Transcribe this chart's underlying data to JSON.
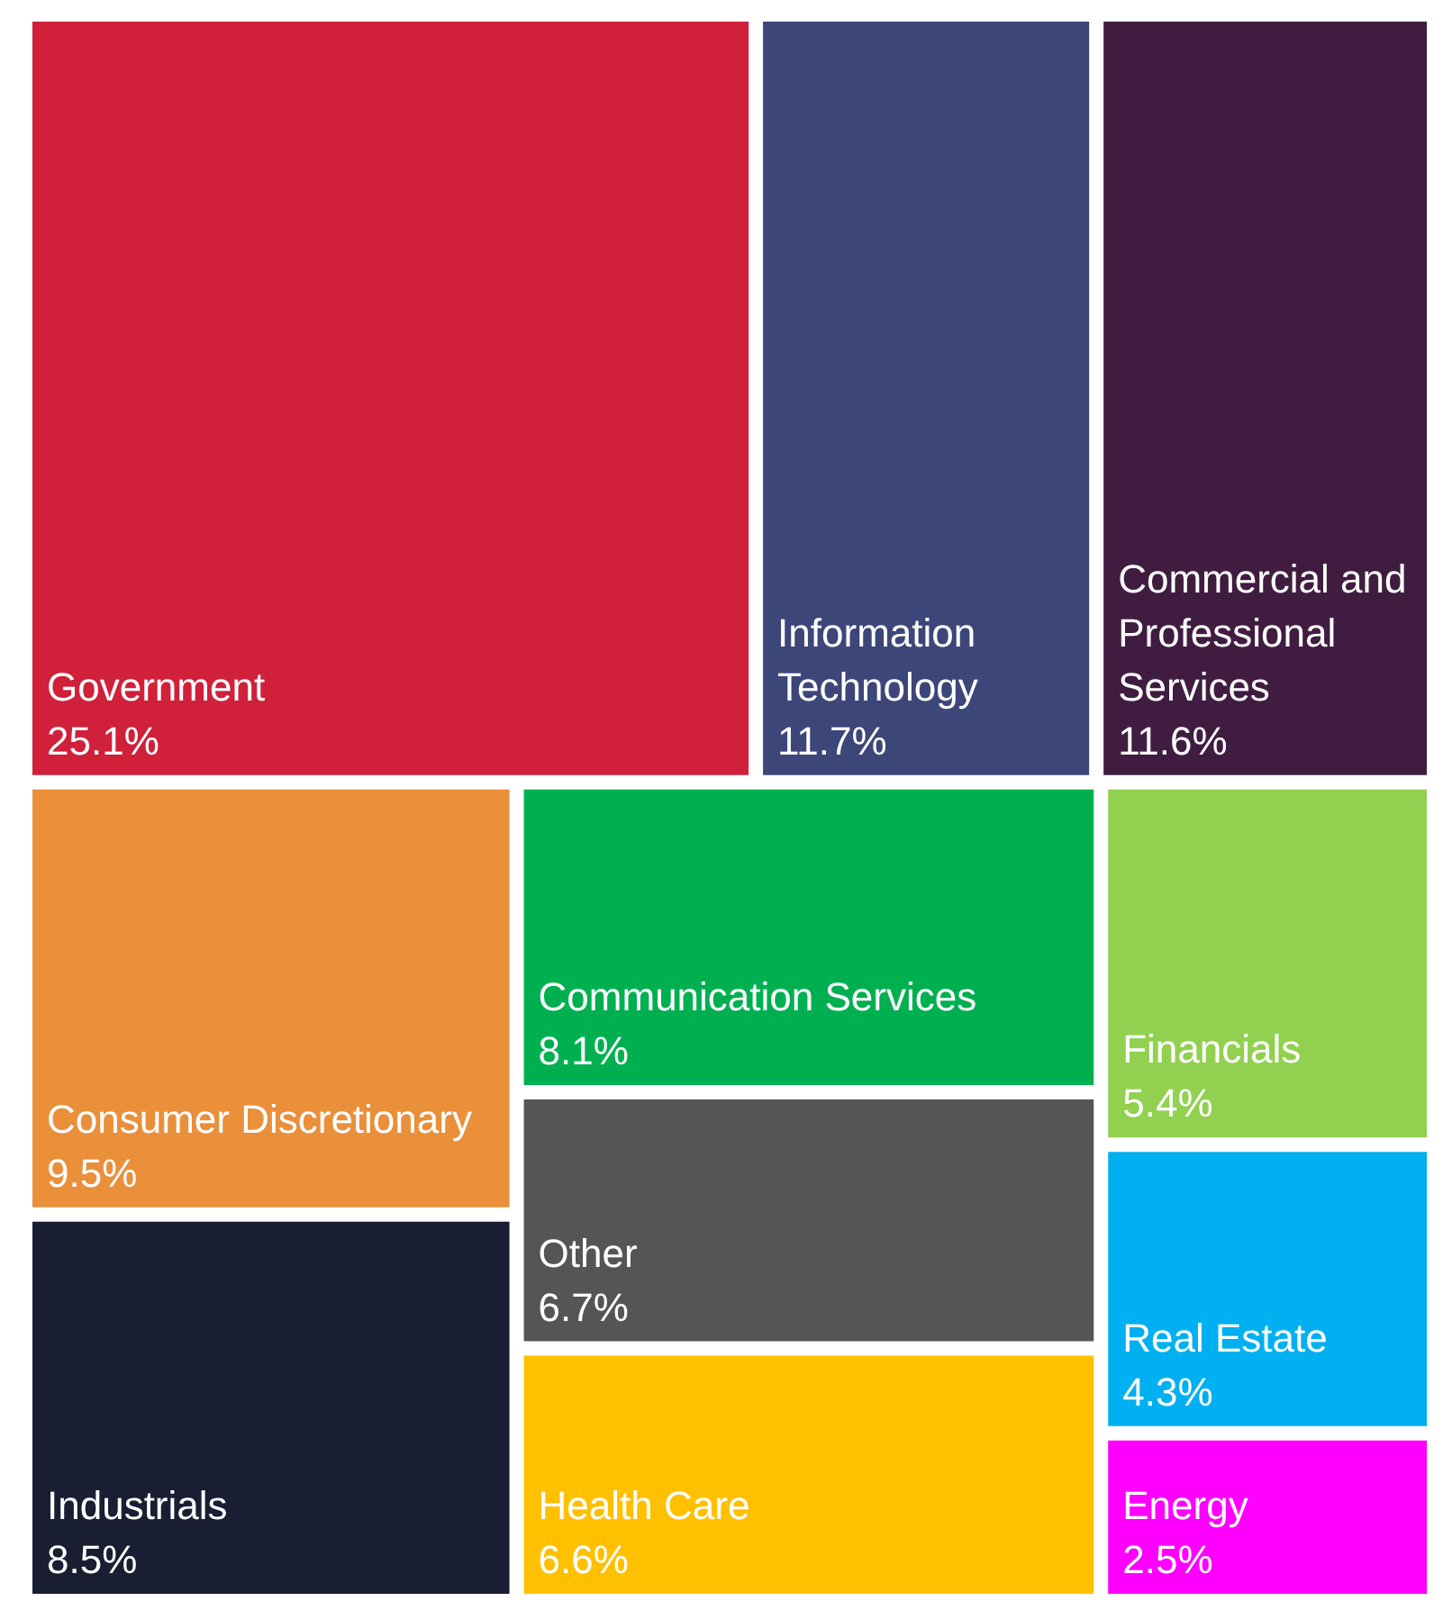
{
  "chart_data": {
    "type": "other",
    "categories": [
      "Government",
      "Information Technology",
      "Commercial and Professional Services",
      "Industrials",
      "Communication Services",
      "Consumer Discretionary",
      "Other",
      "Health Care",
      "Financials",
      "Real Estate",
      "Energy"
    ],
    "values": [
      25.1,
      11.7,
      11.6,
      8.5,
      8.1,
      9.5,
      6.7,
      6.6,
      5.4,
      4.3,
      2.5
    ],
    "value_labels": [
      "25.1%",
      "11.7%",
      "11.6%",
      "8.5%",
      "8.1%",
      "9.5%",
      "6.7%",
      "6.6%",
      "5.4%",
      "4.3%",
      "2.5%"
    ],
    "colors": [
      "#d0203a",
      "#3d4679",
      "#401d40",
      "#1a1e33",
      "#00b050",
      "#ea8f3a",
      "#555555",
      "#ffc000",
      "#92d050",
      "#00b0f0",
      "#ff00ff"
    ]
  }
}
